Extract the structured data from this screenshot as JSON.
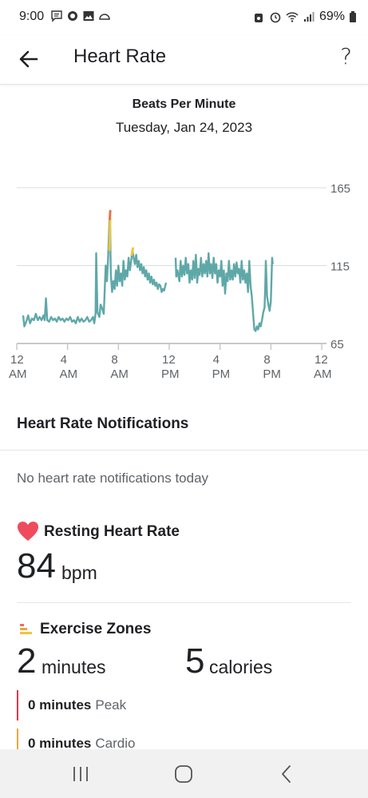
{
  "status_bar": {
    "time": "9:00",
    "battery": "69%",
    "left_icons": [
      "message-icon",
      "gear-sun-icon",
      "image-icon",
      "cloud-icon"
    ],
    "right_icons": [
      "alarm-lock-icon",
      "alarm-icon",
      "wifi-icon",
      "signal-icon",
      "battery-icon"
    ]
  },
  "app_bar": {
    "title": "Heart Rate",
    "back_icon": "arrow-back-icon",
    "help_label": "?"
  },
  "chart_header": {
    "title": "Beats Per Minute",
    "date": "Tuesday, Jan 24, 2023"
  },
  "chart_data": {
    "type": "line",
    "title": "Beats Per Minute",
    "subtitle": "Tuesday, Jan 24, 2023",
    "xlabel": "",
    "ylabel": "",
    "x_unit": "hour of day",
    "xlim": [
      0,
      24
    ],
    "ylim": [
      65,
      165
    ],
    "y_ticks": [
      65,
      115,
      165
    ],
    "y_tick_labels": [
      "65",
      "115",
      "165"
    ],
    "x_ticks": [
      0,
      4,
      8,
      12,
      16,
      20,
      24
    ],
    "x_tick_labels": [
      [
        "12",
        "AM"
      ],
      [
        "4",
        "AM"
      ],
      [
        "8",
        "AM"
      ],
      [
        "12",
        "PM"
      ],
      [
        "4",
        "PM"
      ],
      [
        "8",
        "PM"
      ],
      [
        "12",
        "AM"
      ]
    ],
    "grid": "horizontal",
    "colors": {
      "line": "#5fa8a8",
      "fat_burn": "#f0c43c",
      "peak": "#e8734a",
      "grid": "#dcdcdc",
      "axis": "#c8c8c8"
    },
    "series": [
      {
        "color": "#5fa8a8",
        "points": [
          [
            0.5,
            83
          ],
          [
            0.6,
            76
          ],
          [
            0.75,
            79
          ],
          [
            0.9,
            83
          ],
          [
            1.05,
            78
          ],
          [
            1.2,
            81
          ],
          [
            1.35,
            80
          ],
          [
            1.5,
            84
          ],
          [
            1.65,
            80
          ],
          [
            1.8,
            82
          ],
          [
            1.95,
            80
          ],
          [
            2.1,
            83
          ],
          [
            2.2,
            80
          ],
          [
            2.3,
            94
          ],
          [
            2.4,
            80
          ],
          [
            2.55,
            79
          ],
          [
            2.7,
            82
          ],
          [
            2.85,
            80
          ],
          [
            3.0,
            81
          ],
          [
            3.15,
            79
          ],
          [
            3.3,
            82
          ],
          [
            3.45,
            80
          ],
          [
            3.6,
            81
          ],
          [
            3.75,
            79
          ],
          [
            3.9,
            81
          ],
          [
            4.05,
            80
          ],
          [
            4.2,
            82
          ],
          [
            4.35,
            79
          ],
          [
            4.5,
            80
          ],
          [
            4.65,
            78
          ],
          [
            4.8,
            82
          ],
          [
            4.95,
            79
          ],
          [
            5.1,
            81
          ],
          [
            5.25,
            79
          ],
          [
            5.4,
            80
          ],
          [
            5.55,
            82
          ],
          [
            5.7,
            79
          ],
          [
            5.85,
            80
          ],
          [
            6.0,
            82
          ],
          [
            6.1,
            78
          ],
          [
            6.2,
            84
          ],
          [
            6.25,
            123
          ],
          [
            6.35,
            85
          ],
          [
            6.5,
            82
          ],
          [
            6.6,
            90
          ],
          [
            6.7,
            88
          ],
          [
            6.85,
            84
          ],
          [
            7.0,
            115
          ],
          [
            7.1,
            105
          ],
          [
            7.2,
            122
          ],
          [
            7.3,
            145
          ],
          [
            7.35,
            140
          ],
          [
            7.4,
            110
          ],
          [
            7.5,
            98
          ],
          [
            7.6,
            105
          ],
          [
            7.7,
            100
          ],
          [
            7.8,
            112
          ],
          [
            7.9,
            102
          ],
          [
            8.0,
            115
          ],
          [
            8.1,
            105
          ],
          [
            8.2,
            110
          ],
          [
            8.3,
            102
          ],
          [
            8.4,
            118
          ],
          [
            8.5,
            106
          ],
          [
            8.6,
            112
          ],
          [
            8.7,
            108
          ],
          [
            8.8,
            120
          ],
          [
            8.9,
            112
          ],
          [
            9.0,
            118
          ],
          [
            9.1,
            125
          ],
          [
            9.2,
            120
          ],
          [
            9.3,
            116
          ],
          [
            9.4,
            122
          ],
          [
            9.5,
            114
          ],
          [
            9.6,
            118
          ],
          [
            9.7,
            112
          ],
          [
            9.8,
            116
          ],
          [
            9.9,
            110
          ],
          [
            10.0,
            114
          ],
          [
            10.1,
            108
          ],
          [
            10.2,
            112
          ],
          [
            10.3,
            106
          ],
          [
            10.4,
            110
          ],
          [
            10.5,
            104
          ],
          [
            10.6,
            108
          ],
          [
            10.7,
            103
          ],
          [
            10.8,
            106
          ],
          [
            10.9,
            102
          ],
          [
            11.0,
            104
          ],
          [
            11.1,
            100
          ],
          [
            11.2,
            103
          ],
          [
            11.3,
            102
          ],
          [
            11.4,
            98
          ],
          [
            11.5,
            100
          ],
          [
            11.6,
            99
          ],
          [
            11.75,
            104
          ]
        ]
      },
      {
        "color": "#5fa8a8",
        "points": [
          [
            12.5,
            120
          ],
          [
            12.55,
            108
          ],
          [
            12.65,
            112
          ],
          [
            12.8,
            105
          ],
          [
            12.9,
            118
          ],
          [
            13.0,
            108
          ],
          [
            13.1,
            115
          ],
          [
            13.2,
            109
          ],
          [
            13.3,
            120
          ],
          [
            13.4,
            110
          ],
          [
            13.5,
            116
          ],
          [
            13.6,
            104
          ],
          [
            13.7,
            112
          ],
          [
            13.8,
            106
          ],
          [
            13.9,
            118
          ],
          [
            14.0,
            107
          ],
          [
            14.1,
            122
          ],
          [
            14.2,
            104
          ],
          [
            14.3,
            113
          ],
          [
            14.4,
            109
          ],
          [
            14.5,
            120
          ],
          [
            14.6,
            108
          ],
          [
            14.7,
            116
          ],
          [
            14.8,
            110
          ],
          [
            14.9,
            118
          ],
          [
            15.0,
            108
          ],
          [
            15.1,
            123
          ],
          [
            15.2,
            110
          ],
          [
            15.3,
            116
          ],
          [
            15.4,
            107
          ],
          [
            15.5,
            120
          ],
          [
            15.6,
            110
          ],
          [
            15.7,
            116
          ],
          [
            15.8,
            104
          ],
          [
            15.9,
            112
          ],
          [
            16.0,
            108
          ],
          [
            16.1,
            118
          ],
          [
            16.2,
            102
          ],
          [
            16.3,
            112
          ],
          [
            16.4,
            97
          ],
          [
            16.5,
            110
          ],
          [
            16.6,
            105
          ],
          [
            16.7,
            118
          ],
          [
            16.8,
            106
          ],
          [
            16.9,
            112
          ],
          [
            17.0,
            106
          ],
          [
            17.1,
            116
          ],
          [
            17.2,
            108
          ],
          [
            17.3,
            117
          ],
          [
            17.4,
            110
          ],
          [
            17.5,
            113
          ],
          [
            17.6,
            104
          ],
          [
            17.7,
            118
          ],
          [
            17.8,
            106
          ],
          [
            17.9,
            112
          ],
          [
            18.0,
            104
          ],
          [
            18.1,
            110
          ],
          [
            18.2,
            98
          ],
          [
            18.3,
            118
          ],
          [
            18.4,
            102
          ],
          [
            18.5,
            95
          ],
          [
            18.6,
            84
          ],
          [
            18.7,
            74
          ],
          [
            18.8,
            73
          ],
          [
            18.9,
            76
          ],
          [
            19.0,
            74
          ],
          [
            19.1,
            78
          ],
          [
            19.2,
            76
          ],
          [
            19.3,
            80
          ],
          [
            19.4,
            85
          ],
          [
            19.5,
            88
          ],
          [
            19.55,
            100
          ],
          [
            19.6,
            118
          ],
          [
            19.7,
            95
          ],
          [
            19.8,
            90
          ],
          [
            19.9,
            86
          ],
          [
            20.0,
            92
          ],
          [
            20.1,
            120
          ],
          [
            20.15,
            116
          ]
        ]
      }
    ],
    "zone_highlights": [
      {
        "zone": "Fat Burn",
        "color": "#f0c43c",
        "points": [
          [
            7.3,
            125
          ],
          [
            7.35,
            145
          ]
        ]
      },
      {
        "zone": "Peak",
        "color": "#e8734a",
        "points": [
          [
            7.32,
            145
          ],
          [
            7.36,
            150
          ]
        ]
      },
      {
        "zone": "Fat Burn",
        "color": "#f0c43c",
        "points": [
          [
            9.05,
            122
          ],
          [
            9.15,
            126
          ]
        ]
      }
    ]
  },
  "notifications": {
    "title": "Heart Rate Notifications",
    "empty_text": "No heart rate notifications today"
  },
  "resting_hr": {
    "title": "Resting Heart Rate",
    "icon": "heart-icon",
    "icon_color": "#ee4c5c",
    "value": "84",
    "unit": "bpm"
  },
  "exercise_zones": {
    "title": "Exercise Zones",
    "icon": "zones-bars-icon",
    "minutes_value": "2",
    "minutes_unit": "minutes",
    "calories_value": "5",
    "calories_unit": "calories",
    "zones": [
      {
        "value": "0 minutes",
        "label": "Peak",
        "color": "#e8344a"
      },
      {
        "value": "0 minutes",
        "label": "Cardio",
        "color": "#f0a63c"
      }
    ]
  },
  "nav_bar": {
    "icons": [
      "recent-apps-icon",
      "home-icon",
      "back-nav-icon"
    ]
  }
}
